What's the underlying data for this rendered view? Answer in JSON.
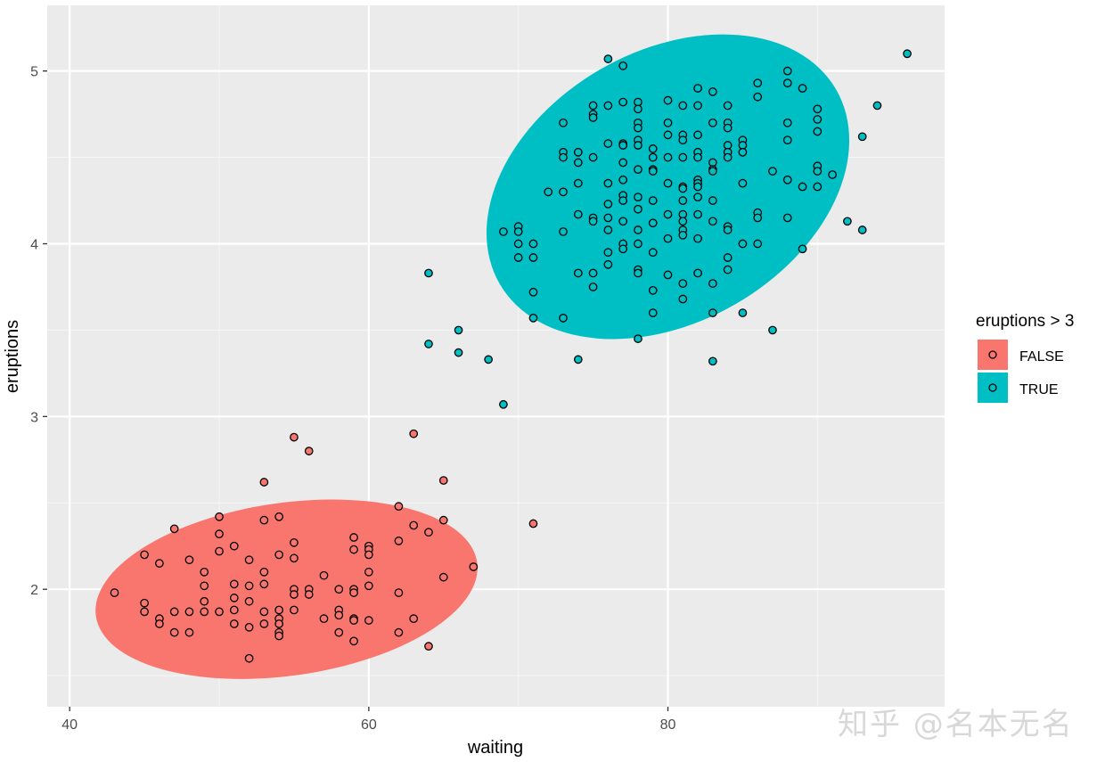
{
  "chart_data": {
    "type": "scatter",
    "title": "",
    "xlabel": "waiting",
    "ylabel": "eruptions",
    "xlim": [
      38.5,
      98.5
    ],
    "ylim": [
      1.32,
      5.38
    ],
    "x_ticks": [
      40,
      60,
      80
    ],
    "x_tick_labels": [
      "40",
      "60",
      "80"
    ],
    "y_ticks": [
      2,
      3,
      4,
      5
    ],
    "y_tick_labels": [
      "2",
      "3",
      "4",
      "5"
    ],
    "grid": true,
    "legend": {
      "title": "eruptions > 3",
      "position": "right",
      "entries": [
        {
          "label": "FALSE",
          "color": "#F8766D"
        },
        {
          "label": "TRUE",
          "color": "#00BFC4"
        }
      ]
    },
    "ellipses": [
      {
        "group": "FALSE",
        "color": "#F8766D",
        "center": [
          54.5,
          2.0
        ],
        "x_range": [
          40.8,
          66.9
        ],
        "y_range": [
          1.47,
          2.54
        ]
      },
      {
        "group": "TRUE",
        "color": "#00BFC4",
        "center": [
          80.0,
          4.33
        ],
        "x_range": [
          66.8,
          91.0
        ],
        "y_range": [
          3.45,
          5.2
        ]
      }
    ],
    "series": [
      {
        "name": "FALSE",
        "color": "#F8766D",
        "points": [
          [
            43,
            1.98
          ],
          [
            45,
            2.2
          ],
          [
            45,
            1.92
          ],
          [
            45,
            1.87
          ],
          [
            46,
            2.15
          ],
          [
            46,
            1.83
          ],
          [
            46,
            1.8
          ],
          [
            47,
            2.35
          ],
          [
            47,
            1.87
          ],
          [
            47,
            1.75
          ],
          [
            48,
            2.17
          ],
          [
            48,
            1.87
          ],
          [
            48,
            1.75
          ],
          [
            49,
            2.1
          ],
          [
            49,
            2.02
          ],
          [
            49,
            1.93
          ],
          [
            49,
            1.87
          ],
          [
            50,
            2.42
          ],
          [
            50,
            2.32
          ],
          [
            50,
            2.22
          ],
          [
            50,
            1.87
          ],
          [
            51,
            2.25
          ],
          [
            51,
            2.03
          ],
          [
            51,
            1.95
          ],
          [
            51,
            1.88
          ],
          [
            51,
            1.8
          ],
          [
            52,
            2.17
          ],
          [
            52,
            2.02
          ],
          [
            52,
            1.93
          ],
          [
            52,
            1.78
          ],
          [
            52,
            1.6
          ],
          [
            53,
            2.62
          ],
          [
            53,
            2.4
          ],
          [
            53,
            2.1
          ],
          [
            53,
            2.03
          ],
          [
            53,
            1.87
          ],
          [
            53,
            1.8
          ],
          [
            54,
            2.42
          ],
          [
            54,
            2.2
          ],
          [
            54,
            1.88
          ],
          [
            54,
            1.83
          ],
          [
            54,
            1.8
          ],
          [
            54,
            1.75
          ],
          [
            54,
            1.73
          ],
          [
            55,
            2.88
          ],
          [
            55,
            2.27
          ],
          [
            55,
            2.18
          ],
          [
            55,
            2.0
          ],
          [
            55,
            1.97
          ],
          [
            55,
            1.88
          ],
          [
            56,
            2.8
          ],
          [
            56,
            2.0
          ],
          [
            56,
            1.97
          ],
          [
            57,
            2.08
          ],
          [
            57,
            1.83
          ],
          [
            58,
            2.0
          ],
          [
            58,
            1.88
          ],
          [
            58,
            1.85
          ],
          [
            58,
            1.75
          ],
          [
            59,
            2.3
          ],
          [
            59,
            2.23
          ],
          [
            59,
            2.0
          ],
          [
            59,
            1.98
          ],
          [
            59,
            1.83
          ],
          [
            59,
            1.82
          ],
          [
            59,
            1.7
          ],
          [
            60,
            2.25
          ],
          [
            60,
            2.23
          ],
          [
            60,
            2.2
          ],
          [
            60,
            2.1
          ],
          [
            60,
            2.02
          ],
          [
            60,
            1.82
          ],
          [
            62,
            2.48
          ],
          [
            62,
            2.28
          ],
          [
            62,
            1.98
          ],
          [
            62,
            1.75
          ],
          [
            63,
            2.9
          ],
          [
            63,
            2.37
          ],
          [
            63,
            1.83
          ],
          [
            64,
            2.33
          ],
          [
            64,
            1.67
          ],
          [
            65,
            2.63
          ],
          [
            65,
            2.4
          ],
          [
            65,
            2.07
          ],
          [
            67,
            2.13
          ],
          [
            71,
            2.38
          ]
        ]
      },
      {
        "name": "TRUE",
        "color": "#00BFC4",
        "points": [
          [
            64,
            3.83
          ],
          [
            64,
            3.42
          ],
          [
            66,
            3.5
          ],
          [
            66,
            3.37
          ],
          [
            68,
            3.33
          ],
          [
            69,
            3.07
          ],
          [
            69,
            4.07
          ],
          [
            70,
            4.1
          ],
          [
            70,
            4.07
          ],
          [
            70,
            4.0
          ],
          [
            70,
            3.92
          ],
          [
            71,
            4.0
          ],
          [
            71,
            3.92
          ],
          [
            71,
            3.72
          ],
          [
            71,
            3.57
          ],
          [
            72,
            4.3
          ],
          [
            73,
            4.7
          ],
          [
            73,
            4.53
          ],
          [
            73,
            4.5
          ],
          [
            73,
            4.3
          ],
          [
            73,
            4.07
          ],
          [
            73,
            3.57
          ],
          [
            74,
            4.53
          ],
          [
            74,
            4.47
          ],
          [
            74,
            4.35
          ],
          [
            74,
            4.17
          ],
          [
            74,
            3.83
          ],
          [
            74,
            3.33
          ],
          [
            75,
            4.8
          ],
          [
            75,
            4.75
          ],
          [
            75,
            4.73
          ],
          [
            75,
            4.5
          ],
          [
            75,
            4.15
          ],
          [
            75,
            4.13
          ],
          [
            75,
            3.83
          ],
          [
            75,
            3.75
          ],
          [
            76,
            5.07
          ],
          [
            76,
            4.8
          ],
          [
            76,
            4.58
          ],
          [
            76,
            4.35
          ],
          [
            76,
            4.23
          ],
          [
            76,
            4.15
          ],
          [
            76,
            4.08
          ],
          [
            76,
            3.95
          ],
          [
            76,
            3.88
          ],
          [
            77,
            5.03
          ],
          [
            77,
            4.82
          ],
          [
            77,
            4.58
          ],
          [
            77,
            4.57
          ],
          [
            77,
            4.47
          ],
          [
            77,
            4.37
          ],
          [
            77,
            4.28
          ],
          [
            77,
            4.25
          ],
          [
            77,
            4.13
          ],
          [
            77,
            4.0
          ],
          [
            77,
            3.97
          ],
          [
            78,
            4.82
          ],
          [
            78,
            4.78
          ],
          [
            78,
            4.7
          ],
          [
            78,
            4.67
          ],
          [
            78,
            4.6
          ],
          [
            78,
            4.57
          ],
          [
            78,
            4.43
          ],
          [
            78,
            4.27
          ],
          [
            78,
            4.2
          ],
          [
            78,
            4.08
          ],
          [
            78,
            4.0
          ],
          [
            78,
            3.85
          ],
          [
            78,
            3.83
          ],
          [
            78,
            3.45
          ],
          [
            79,
            4.55
          ],
          [
            79,
            4.5
          ],
          [
            79,
            4.43
          ],
          [
            79,
            4.42
          ],
          [
            79,
            4.25
          ],
          [
            79,
            4.12
          ],
          [
            79,
            3.95
          ],
          [
            79,
            3.73
          ],
          [
            79,
            3.6
          ],
          [
            80,
            4.83
          ],
          [
            80,
            4.7
          ],
          [
            80,
            4.63
          ],
          [
            80,
            4.5
          ],
          [
            80,
            4.35
          ],
          [
            80,
            4.17
          ],
          [
            80,
            4.03
          ],
          [
            80,
            3.82
          ],
          [
            81,
            4.8
          ],
          [
            81,
            4.63
          ],
          [
            81,
            4.6
          ],
          [
            81,
            4.5
          ],
          [
            81,
            4.33
          ],
          [
            81,
            4.32
          ],
          [
            81,
            4.25
          ],
          [
            81,
            4.17
          ],
          [
            81,
            4.13
          ],
          [
            81,
            4.08
          ],
          [
            81,
            4.05
          ],
          [
            81,
            3.77
          ],
          [
            81,
            3.68
          ],
          [
            82,
            4.9
          ],
          [
            82,
            4.8
          ],
          [
            82,
            4.63
          ],
          [
            82,
            4.53
          ],
          [
            82,
            4.5
          ],
          [
            82,
            4.37
          ],
          [
            82,
            4.35
          ],
          [
            82,
            4.33
          ],
          [
            82,
            4.27
          ],
          [
            82,
            4.17
          ],
          [
            82,
            4.03
          ],
          [
            82,
            3.83
          ],
          [
            83,
            4.88
          ],
          [
            83,
            4.7
          ],
          [
            83,
            4.47
          ],
          [
            83,
            4.43
          ],
          [
            83,
            4.42
          ],
          [
            83,
            4.25
          ],
          [
            83,
            4.13
          ],
          [
            83,
            3.77
          ],
          [
            83,
            3.6
          ],
          [
            83,
            3.32
          ],
          [
            84,
            4.8
          ],
          [
            84,
            4.7
          ],
          [
            84,
            4.67
          ],
          [
            84,
            4.57
          ],
          [
            84,
            4.53
          ],
          [
            84,
            4.5
          ],
          [
            84,
            4.1
          ],
          [
            84,
            4.08
          ],
          [
            84,
            3.92
          ],
          [
            84,
            3.85
          ],
          [
            85,
            4.6
          ],
          [
            85,
            4.57
          ],
          [
            85,
            4.53
          ],
          [
            85,
            4.35
          ],
          [
            85,
            4.0
          ],
          [
            85,
            3.6
          ],
          [
            86,
            4.93
          ],
          [
            86,
            4.85
          ],
          [
            86,
            4.18
          ],
          [
            86,
            4.15
          ],
          [
            86,
            4.0
          ],
          [
            87,
            4.42
          ],
          [
            87,
            3.5
          ],
          [
            88,
            5.0
          ],
          [
            88,
            4.93
          ],
          [
            88,
            4.7
          ],
          [
            88,
            4.6
          ],
          [
            88,
            4.37
          ],
          [
            88,
            4.15
          ],
          [
            89,
            4.9
          ],
          [
            89,
            4.33
          ],
          [
            89,
            3.97
          ],
          [
            90,
            4.78
          ],
          [
            90,
            4.72
          ],
          [
            90,
            4.65
          ],
          [
            90,
            4.45
          ],
          [
            90,
            4.42
          ],
          [
            90,
            4.33
          ],
          [
            91,
            4.4
          ],
          [
            92,
            4.13
          ],
          [
            93,
            4.62
          ],
          [
            93,
            4.08
          ],
          [
            94,
            4.8
          ],
          [
            96,
            5.1
          ]
        ]
      }
    ]
  },
  "watermark": "知乎 @名本无名"
}
